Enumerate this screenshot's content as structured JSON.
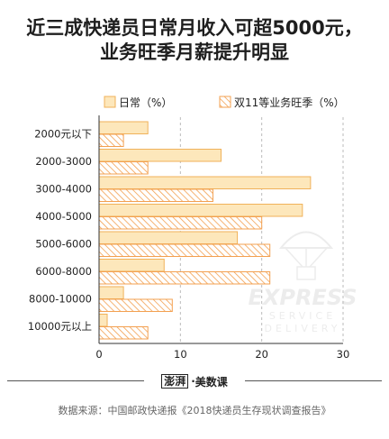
{
  "title_lines": [
    "近三成快递员日常月收入可超5000元，",
    "业务旺季月薪提升明显"
  ],
  "brand": {
    "logo": "澎湃",
    "separator": "·",
    "name": "美数课"
  },
  "source": "数据来源：中国邮政快递报《2018快递员生存现状调查报告》",
  "watermark": {
    "line1": "EXPRESS",
    "line2": "SERVICE",
    "line3": "DELIVERY"
  },
  "colors": {
    "daily_fill": "#fde7bb",
    "daily_stroke": "#f0b25a",
    "peak_stroke": "#f3a050",
    "grid": "#bbbbbb",
    "axis": "#333333"
  },
  "chart_data": {
    "type": "bar",
    "orientation": "horizontal",
    "categories": [
      "2000元以下",
      "2000-3000",
      "3000-4000",
      "4000-5000",
      "5000-6000",
      "6000-8000",
      "8000-10000",
      "10000元以上"
    ],
    "series": [
      {
        "name": "日常（%）",
        "values": [
          6,
          15,
          26,
          25,
          17,
          8,
          3,
          1
        ]
      },
      {
        "name": "双11等业务旺季（%）",
        "values": [
          3,
          6,
          14,
          20,
          21,
          21,
          9,
          6
        ]
      }
    ],
    "xlim": [
      0,
      30
    ],
    "xticks": [
      0,
      10,
      20,
      30
    ],
    "grid": true,
    "legend_position": "top"
  }
}
